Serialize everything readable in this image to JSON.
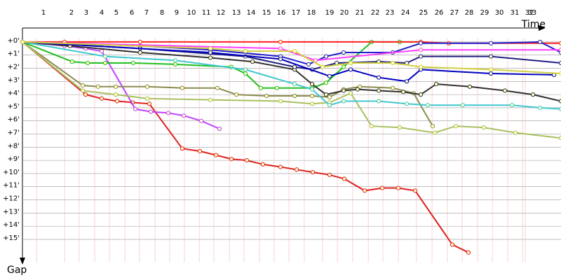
{
  "chart_data": {
    "type": "line",
    "x_label": "Time",
    "y_label": "Gap",
    "xlim": [
      0,
      35.72
    ],
    "ylim": [
      -1.06,
      16.76
    ],
    "grid": true,
    "xticks": [
      {
        "value": 1.4,
        "label": "1"
      },
      {
        "value": 3.26,
        "label": "2"
      },
      {
        "value": 4.23,
        "label": "3"
      },
      {
        "value": 5.26,
        "label": "4"
      },
      {
        "value": 6.23,
        "label": "5"
      },
      {
        "value": 7.26,
        "label": "6"
      },
      {
        "value": 8.23,
        "label": "7"
      },
      {
        "value": 9.26,
        "label": "8"
      },
      {
        "value": 10.23,
        "label": "9"
      },
      {
        "value": 11.21,
        "label": "10"
      },
      {
        "value": 12.19,
        "label": "11"
      },
      {
        "value": 13.16,
        "label": "12"
      },
      {
        "value": 14.19,
        "label": "13"
      },
      {
        "value": 15.16,
        "label": "14"
      },
      {
        "value": 16.19,
        "label": "15"
      },
      {
        "value": 17.16,
        "label": "16"
      },
      {
        "value": 18.14,
        "label": "17"
      },
      {
        "value": 19.16,
        "label": "18"
      },
      {
        "value": 20.37,
        "label": "19"
      },
      {
        "value": 21.35,
        "label": "20"
      },
      {
        "value": 22.37,
        "label": "21"
      },
      {
        "value": 23.4,
        "label": "22"
      },
      {
        "value": 24.37,
        "label": "23"
      },
      {
        "value": 25.4,
        "label": "24"
      },
      {
        "value": 26.6,
        "label": "25"
      },
      {
        "value": 27.63,
        "label": "26"
      },
      {
        "value": 28.65,
        "label": "27"
      },
      {
        "value": 29.63,
        "label": "28"
      },
      {
        "value": 30.65,
        "label": "29"
      },
      {
        "value": 31.63,
        "label": "30"
      },
      {
        "value": 32.65,
        "label": "31"
      },
      {
        "value": 33.63,
        "label": "32"
      },
      {
        "value": 33.81,
        "label": "33"
      }
    ],
    "yticks": [
      {
        "value": 0,
        "label": "+0'"
      },
      {
        "value": 1,
        "label": "+1'"
      },
      {
        "value": 2,
        "label": "+2'"
      },
      {
        "value": 3,
        "label": "+3'"
      },
      {
        "value": 4,
        "label": "+4'"
      },
      {
        "value": 5,
        "label": "+5'"
      },
      {
        "value": 6,
        "label": "+6'"
      },
      {
        "value": 7,
        "label": "+7'"
      },
      {
        "value": 8,
        "label": "+8'"
      },
      {
        "value": 9,
        "label": "+9'"
      },
      {
        "value": 10,
        "label": "+10'"
      },
      {
        "value": 11,
        "label": "+11'"
      },
      {
        "value": 12,
        "label": "+12'"
      },
      {
        "value": 13,
        "label": "+13'"
      },
      {
        "value": 14,
        "label": "+14'"
      },
      {
        "value": 15,
        "label": "+15'"
      }
    ],
    "series": [
      {
        "color": "#e02020",
        "x": [
          0,
          4.19,
          5.26,
          6.28,
          7.3,
          8.42,
          10.6,
          11.77,
          12.84,
          13.86,
          14.88,
          15.95,
          17.12,
          18.19,
          19.26,
          20.37,
          21.35,
          22.7,
          23.86,
          24.93,
          26.05,
          28.51,
          29.58
        ],
        "values": [
          0,
          4.0,
          4.3,
          4.5,
          4.6,
          4.7,
          8.1,
          8.3,
          8.6,
          8.9,
          9.0,
          9.3,
          9.5,
          9.7,
          9.9,
          10.1,
          10.4,
          11.3,
          11.1,
          11.1,
          11.3,
          15.4,
          16.0
        ]
      },
      {
        "color": "#c040ff",
        "x": [
          0,
          2.79,
          4.19,
          5.26,
          7.49,
          8.51,
          9.67,
          10.7,
          11.86,
          13.07
        ],
        "values": [
          0,
          0.3,
          0.5,
          0.7,
          5.1,
          5.3,
          5.4,
          5.6,
          6.0,
          6.6
        ]
      },
      {
        "color": "#8b8b50",
        "x": [
          0,
          4.0,
          5.02,
          6.19,
          8.28,
          10.6,
          12.93,
          14.19,
          16.19,
          18.05,
          19.21,
          20.37,
          21.3,
          22.37,
          24.56,
          25.95,
          27.21
        ],
        "values": [
          0,
          3.3,
          3.4,
          3.4,
          3.4,
          3.5,
          3.5,
          4.0,
          4.1,
          4.1,
          4.1,
          4.2,
          3.6,
          3.4,
          3.5,
          3.9,
          6.4
        ]
      },
      {
        "color": "#a8c060",
        "x": [
          0,
          4.0,
          6.19,
          8.28,
          12.47,
          17.12,
          19.21,
          20.37,
          21.77,
          23.16,
          25.02,
          27.35,
          28.74,
          30.6,
          32.7,
          35.72
        ],
        "values": [
          0,
          3.7,
          4.0,
          4.3,
          4.4,
          4.5,
          4.7,
          4.6,
          3.9,
          6.4,
          6.5,
          6.9,
          6.4,
          6.5,
          6.9,
          7.3
        ]
      },
      {
        "color": "#20c020",
        "x": [
          0,
          3.3,
          4.33,
          5.49,
          7.35,
          10.14,
          13.86,
          14.79,
          15.81,
          16.88,
          19.21,
          20.14,
          21.3,
          23.16,
          25.02,
          26.42
        ],
        "values": [
          0,
          1.5,
          1.6,
          1.6,
          1.6,
          1.7,
          1.9,
          2.4,
          3.5,
          3.5,
          3.5,
          3.1,
          1.9,
          0,
          0,
          0
        ]
      },
      {
        "color": "#303030",
        "x": [
          0,
          3.16,
          7.81,
          12.47,
          15.26,
          18.05,
          19.21,
          20.14,
          21.3,
          22.23,
          23.63,
          25.26,
          26.42,
          27.44,
          29.67,
          32.0,
          33.86,
          35.72
        ],
        "values": [
          0,
          0.3,
          0.8,
          1.2,
          1.5,
          2.1,
          3.2,
          4.0,
          3.7,
          3.6,
          3.7,
          3.8,
          4.0,
          3.2,
          3.4,
          3.7,
          4.0,
          4.5
        ]
      },
      {
        "color": "#40c8d0",
        "x": [
          0,
          5.49,
          10.14,
          14.79,
          18.05,
          19.21,
          20.37,
          21.3,
          23.63,
          25.49,
          26.88,
          29.21,
          32.47,
          34.33,
          35.72
        ],
        "values": [
          0,
          1.1,
          1.4,
          2.1,
          3.2,
          3.6,
          4.8,
          4.5,
          4.5,
          4.7,
          4.8,
          4.8,
          4.8,
          5.0,
          5.1
        ]
      },
      {
        "color": "#ff2020",
        "x": [
          0,
          2.79,
          7.81,
          17.12,
          26.42,
          28.28,
          35.72
        ],
        "values": [
          0,
          0,
          0,
          0,
          0,
          0.1,
          0.1
        ]
      },
      {
        "color": "#2020d0",
        "x": [
          0,
          7.81,
          12.47,
          17.12,
          18.98,
          20.14,
          21.3,
          24.56,
          26.42,
          31.07,
          34.33,
          35.72
        ],
        "values": [
          0,
          0.3,
          0.6,
          1.1,
          1.7,
          1.1,
          0.8,
          0.8,
          0.1,
          0.1,
          0,
          0.8
        ]
      },
      {
        "color": "#202080",
        "x": [
          0,
          7.81,
          14.79,
          18.05,
          19.21,
          20.84,
          23.63,
          25.49,
          26.42,
          31.07,
          35.72
        ],
        "values": [
          0,
          0.5,
          1.1,
          1.9,
          2.1,
          1.6,
          1.5,
          1.6,
          1.1,
          1.1,
          1.6
        ]
      },
      {
        "color": "#0000c0",
        "x": [
          0,
          12.47,
          17.12,
          20.37,
          21.77,
          23.63,
          25.49,
          26.42,
          31.07,
          35.26
        ],
        "values": [
          0,
          0.8,
          1.3,
          2.6,
          2.1,
          2.7,
          3.0,
          2.1,
          2.4,
          2.5
        ]
      },
      {
        "color": "#ff40ff",
        "x": [
          0,
          17.12,
          19.44,
          26.42,
          35.72
        ],
        "values": [
          0,
          0.5,
          1.4,
          0.6,
          0.6
        ]
      },
      {
        "color": "#d0d040",
        "x": [
          0,
          12.47,
          14.79,
          18.05,
          19.91,
          21.77,
          24.56,
          26.42,
          31.07,
          35.72
        ],
        "values": [
          0,
          0.5,
          0.7,
          0.7,
          1.9,
          1.6,
          1.6,
          1.9,
          2.1,
          2.4
        ]
      }
    ]
  }
}
